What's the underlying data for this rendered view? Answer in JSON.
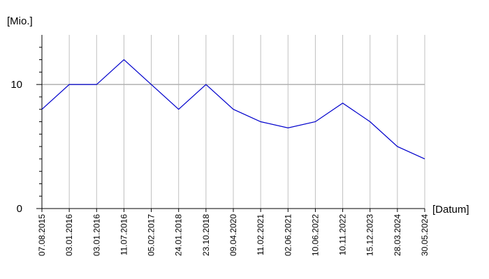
{
  "chart_data": {
    "type": "line",
    "y_label": "[Mio.]",
    "x_label": "[Datum]",
    "categories": [
      "07.08.2015",
      "03.01.2016",
      "03.01.2016",
      "11.07.2016",
      "05.02.2017",
      "24.01.2018",
      "23.10.2018",
      "09.04.2020",
      "11.02.2021",
      "02.06.2021",
      "10.06.2022",
      "10.11.2022",
      "15.12.2023",
      "28.03.2024",
      "30.05.2024"
    ],
    "values": [
      8,
      10,
      10,
      12,
      10,
      8,
      10,
      8,
      7,
      6.5,
      7,
      8.5,
      7,
      5,
      4
    ],
    "color": "#0000cc",
    "ylim": [
      0,
      14
    ],
    "yticks": [
      0,
      10
    ],
    "yminorticks": [
      1,
      2,
      3,
      4,
      5,
      6,
      7,
      8,
      9,
      11,
      12,
      13
    ],
    "grid": true
  }
}
